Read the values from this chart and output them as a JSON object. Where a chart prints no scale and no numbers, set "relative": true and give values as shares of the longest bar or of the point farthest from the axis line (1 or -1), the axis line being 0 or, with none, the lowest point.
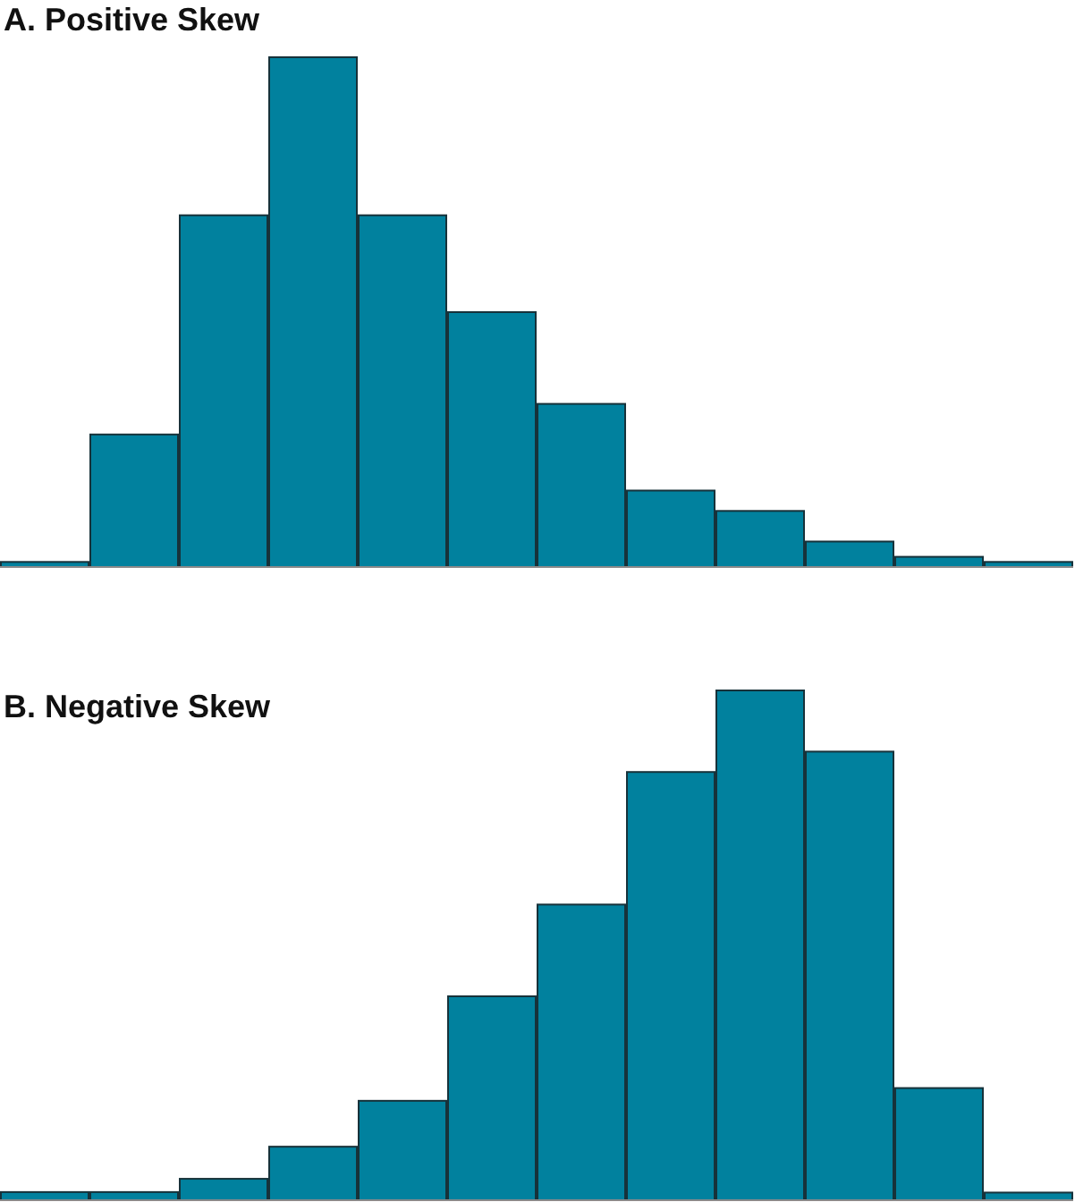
{
  "chart_data": [
    {
      "type": "bar",
      "title": "A. Positive Skew",
      "categories": [
        null,
        null,
        null,
        null,
        null,
        null,
        null,
        null,
        null,
        null,
        null,
        null
      ],
      "values": [
        0.01,
        0.26,
        0.69,
        1,
        0.69,
        0.5,
        0.32,
        0.15,
        0.11,
        0.05,
        0.02,
        0.01
      ],
      "color": "#01819e",
      "relative": true
    },
    {
      "type": "bar",
      "title": "B. Negative Skew",
      "categories": [
        null,
        null,
        null,
        null,
        null,
        null,
        null,
        null,
        null,
        null,
        null,
        null
      ],
      "values": [
        0.016,
        0.016,
        0.042,
        0.105,
        0.195,
        0.4,
        0.58,
        0.84,
        1,
        0.88,
        0.22,
        0.015
      ],
      "color": "#01819e",
      "relative": true
    }
  ]
}
